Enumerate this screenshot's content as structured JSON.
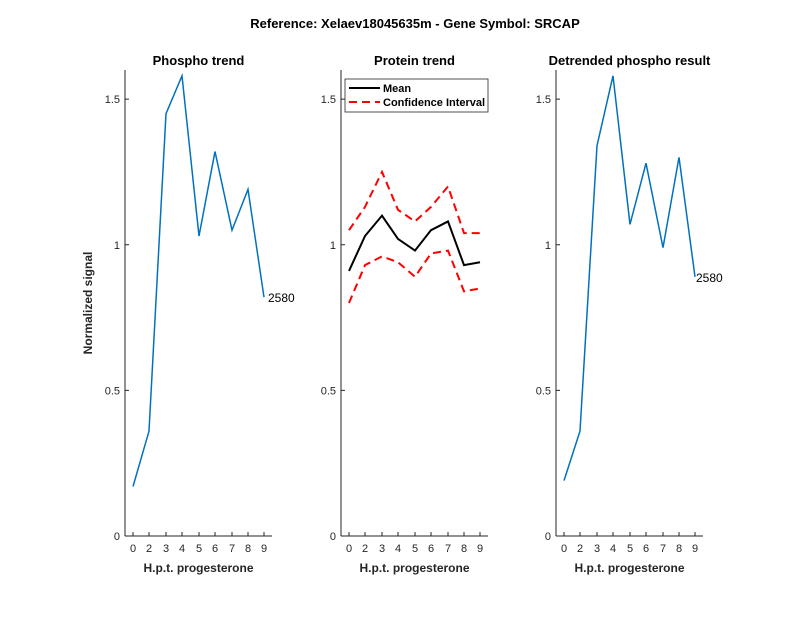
{
  "figure": {
    "suptitle": "Reference:  Xelaev18045635m - Gene Symbol:  SRCAP"
  },
  "chart_data": [
    {
      "type": "line",
      "title": "Phospho trend",
      "xlabel": "H.p.t. progesterone",
      "ylabel": "Normalized signal",
      "ylim": [
        0,
        1.6
      ],
      "yticks": [
        0,
        0.5,
        1,
        1.5
      ],
      "ytick_labels": [
        "0",
        "0.5",
        "1",
        "1.5"
      ],
      "xticks": [
        0,
        2,
        3,
        4,
        5,
        6,
        7,
        8,
        9
      ],
      "xtick_labels": [
        "0",
        "2",
        "3",
        "4",
        "5",
        "6",
        "7",
        "8",
        "9"
      ],
      "series": [
        {
          "color": "#0072BD",
          "style": "solid",
          "values": [
            0.17,
            0.36,
            1.45,
            1.58,
            1.03,
            1.32,
            1.05,
            1.19,
            0.82
          ]
        }
      ],
      "annotation": "2580"
    },
    {
      "type": "line",
      "title": "Protein trend",
      "xlabel": "H.p.t. progesterone",
      "ylabel": "",
      "ylim": [
        0,
        1.6
      ],
      "yticks": [
        0,
        0.5,
        1,
        1.5
      ],
      "ytick_labels": [
        "0",
        "0.5",
        "1",
        "1.5"
      ],
      "xticks": [
        0,
        2,
        3,
        4,
        5,
        6,
        7,
        8,
        9
      ],
      "xtick_labels": [
        "0",
        "2",
        "3",
        "4",
        "5",
        "6",
        "7",
        "8",
        "9"
      ],
      "legend": {
        "placement": "top-left",
        "entries": [
          "Mean",
          "Confidence Interval"
        ]
      },
      "series": [
        {
          "name": "Mean",
          "color": "#000000",
          "style": "solid",
          "values": [
            0.91,
            1.03,
            1.1,
            1.02,
            0.98,
            1.05,
            1.08,
            0.93,
            0.94
          ]
        },
        {
          "name": "Confidence Interval",
          "color": "#FF0000",
          "style": "dashed",
          "values": [
            1.05,
            1.13,
            1.25,
            1.12,
            1.08,
            1.13,
            1.2,
            1.04,
            1.04
          ]
        },
        {
          "name": "Confidence Interval",
          "color": "#FF0000",
          "style": "dashed",
          "values": [
            0.8,
            0.93,
            0.96,
            0.94,
            0.89,
            0.97,
            0.98,
            0.84,
            0.85
          ]
        }
      ]
    },
    {
      "type": "line",
      "title": "Detrended phospho result",
      "xlabel": "H.p.t. progesterone",
      "ylabel": "",
      "ylim": [
        0,
        1.6
      ],
      "yticks": [
        0,
        0.5,
        1,
        1.5
      ],
      "ytick_labels": [
        "0",
        "0.5",
        "1",
        "1.5"
      ],
      "xticks": [
        0,
        2,
        3,
        4,
        5,
        6,
        7,
        8,
        9
      ],
      "xtick_labels": [
        "0",
        "2",
        "3",
        "4",
        "5",
        "6",
        "7",
        "8",
        "9"
      ],
      "series": [
        {
          "color": "#0072BD",
          "style": "solid",
          "values": [
            0.19,
            0.36,
            1.34,
            1.58,
            1.07,
            1.28,
            0.99,
            1.3,
            0.89
          ]
        }
      ],
      "annotation": "2580"
    }
  ]
}
